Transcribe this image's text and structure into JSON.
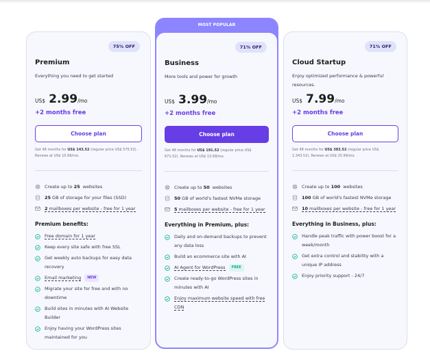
{
  "plans": [
    {
      "name": "Premium",
      "badge": "75% OFF",
      "description": "Everything you need to get started",
      "currency": "US$",
      "price": "2.99",
      "period": "/mo",
      "bonus": "+2 months free",
      "cta": "Choose plan",
      "fine_print": {
        "pre": "Get 48 months for ",
        "total": "US$ 143.52",
        "post": " (regular price US$ 575.52). Renews at US$ 10.99/mo."
      },
      "specs": [
        {
          "icon": "globe-icon",
          "pre": "Create up to ",
          "bold": "25",
          "post": " websites",
          "dashed": false
        },
        {
          "icon": "database-icon",
          "pre": "",
          "bold": "25",
          "post": "GB of storage for your files (SSD)",
          "dashed": false
        },
        {
          "icon": "mail-icon",
          "pre": "",
          "bold": "2",
          "post": "mailboxes per website - free for 1 year",
          "dashed": true
        }
      ],
      "benefits_title": "Premium benefits:",
      "benefits": [
        {
          "text": "Free domain for 1 year",
          "dashed": true,
          "tag": ""
        },
        {
          "text": "Keep every site safe with free SSL",
          "dashed": false,
          "tag": ""
        },
        {
          "text": "Get weekly auto backups for easy data recovery",
          "dashed": false,
          "tag": ""
        },
        {
          "text": "Email marketing",
          "dashed": true,
          "tag": "NEW"
        },
        {
          "text": "Migrate your site for free and with no downtime",
          "dashed": false,
          "tag": ""
        },
        {
          "text": "Build sites in minutes with AI Website Builder",
          "dashed": false,
          "tag": ""
        },
        {
          "text": "Enjoy having your WordPress sites maintained for you",
          "dashed": false,
          "tag": ""
        }
      ]
    },
    {
      "ribbon": "MOST POPULAR",
      "name": "Business",
      "badge": "71% OFF",
      "description": "More tools and power for growth",
      "currency": "US$",
      "price": "3.99",
      "period": "/mo",
      "bonus": "+2 months free",
      "cta": "Choose plan",
      "fine_print": {
        "pre": "Get 48 months for ",
        "total": "US$ 191.52",
        "post": " (regular price US$ 671.52). Renews at US$ 13.99/mo."
      },
      "specs": [
        {
          "icon": "globe-icon",
          "pre": "Create up to ",
          "bold": "50",
          "post": " websites",
          "dashed": false
        },
        {
          "icon": "database-icon",
          "pre": "",
          "bold": "50",
          "post": "GB of world's fastest NVMe storage",
          "dashed": false
        },
        {
          "icon": "mail-icon",
          "pre": "",
          "bold": "5",
          "post": "mailboxes per website - free for 1 year",
          "dashed": true
        }
      ],
      "benefits_title": "Everything in Premium, plus:",
      "benefits": [
        {
          "text": "Daily and on-demand backups to prevent any data loss",
          "dashed": false,
          "tag": ""
        },
        {
          "text": "Build an ecommerce site with AI",
          "dashed": false,
          "tag": ""
        },
        {
          "text": "AI Agent for WordPress",
          "dashed": true,
          "tag": "FREE"
        },
        {
          "text": "Create ready-to-go WordPress sites in minutes with AI",
          "dashed": false,
          "tag": ""
        },
        {
          "text": "Enjoy maximum website speed with free CDN",
          "dashed": true,
          "tag": ""
        }
      ]
    },
    {
      "name": "Cloud Startup",
      "badge": "71% OFF",
      "description": "Enjoy optimized performance & powerful resources.",
      "currency": "US$",
      "price": "7.99",
      "period": "/mo",
      "bonus": "+2 months free",
      "cta": "Choose plan",
      "fine_print": {
        "pre": "Get 48 months for ",
        "total": "US$ 383.52",
        "post": " (regular price US$ 1,343.52). Renews at US$ 25.99/mo."
      },
      "specs": [
        {
          "icon": "globe-icon",
          "pre": "Create up to ",
          "bold": "100",
          "post": " websites",
          "dashed": false
        },
        {
          "icon": "database-icon",
          "pre": "",
          "bold": "100",
          "post": "GB of world's fastest NVMe storage",
          "dashed": false
        },
        {
          "icon": "mail-icon",
          "pre": "",
          "bold": "10",
          "post": "mailboxes per website - free for 1 year",
          "dashed": true
        }
      ],
      "benefits_title": "Everything in Business, plus:",
      "benefits": [
        {
          "text": "Handle peak traffic with power boost for a week/month",
          "dashed": false,
          "tag": ""
        },
        {
          "text": "Get extra control and stability with a unique IP address",
          "dashed": false,
          "tag": ""
        },
        {
          "text": "Enjoy priority support - 24/7",
          "dashed": false,
          "tag": ""
        }
      ]
    }
  ],
  "colors": {
    "accent": "#673de6",
    "ribbon": "#8c85ff",
    "badge_bg": "#dfe2fb",
    "check": "#00b090",
    "card_bg": "#f7f8fd"
  }
}
